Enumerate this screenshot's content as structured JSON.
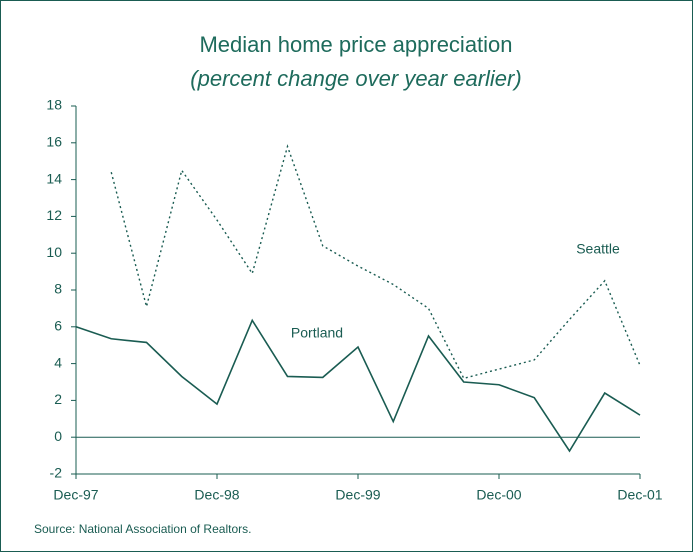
{
  "chart_data": {
    "type": "line",
    "title": "Median home price appreciation",
    "subtitle": "(percent change over year earlier)",
    "source": "Source: National Association of Realtors.",
    "categories": [
      "Dec-97",
      null,
      null,
      null,
      "Dec-98",
      null,
      null,
      null,
      "Dec-99",
      null,
      null,
      null,
      "Dec-00",
      null,
      null,
      null,
      "Dec-01"
    ],
    "series": [
      {
        "name": "Portland",
        "color": "#1a5c52",
        "style": "solid",
        "values": [
          6.0,
          5.35,
          5.15,
          3.3,
          1.8,
          6.35,
          3.3,
          3.25,
          4.9,
          0.85,
          5.5,
          3.0,
          2.85,
          2.15,
          -0.75,
          2.4,
          1.2
        ]
      },
      {
        "name": "Seattle",
        "color": "#1a5c52",
        "style": "dotted",
        "values": [
          null,
          14.4,
          7.1,
          14.5,
          11.8,
          8.9,
          15.8,
          10.4,
          9.3,
          8.3,
          7.0,
          3.2,
          3.7,
          4.2,
          6.4,
          8.5,
          3.9
        ]
      }
    ],
    "ylim": [
      -2,
      18
    ],
    "yticks": [
      -2,
      0,
      2,
      4,
      6,
      8,
      10,
      12,
      14,
      16,
      18
    ]
  }
}
